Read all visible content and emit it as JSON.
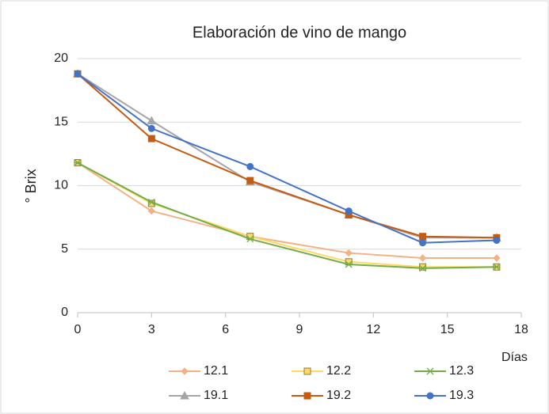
{
  "chart_data": {
    "type": "line",
    "title": "Elaboración de vino de mango",
    "x_label": "Días",
    "y_label": "° Brix",
    "x": [
      0,
      3,
      7,
      11,
      14,
      17
    ],
    "series": [
      {
        "name": "12.1",
        "color": "#f4b183",
        "marker": "diamond",
        "values": [
          11.8,
          8.0,
          6.0,
          4.7,
          4.3,
          4.3
        ]
      },
      {
        "name": "12.2",
        "color": "#ffd966",
        "marker": "square-open",
        "values": [
          11.8,
          8.6,
          6.0,
          4.0,
          3.6,
          3.6
        ]
      },
      {
        "name": "12.3",
        "color": "#70ad47",
        "marker": "star",
        "values": [
          11.8,
          8.7,
          5.8,
          3.8,
          3.5,
          3.6
        ]
      },
      {
        "name": "19.1",
        "color": "#a5a5a5",
        "marker": "triangle",
        "values": [
          18.8,
          15.1,
          10.3,
          7.7,
          5.9,
          5.9
        ]
      },
      {
        "name": "19.2",
        "color": "#c55a11",
        "marker": "square",
        "values": [
          18.8,
          13.7,
          10.4,
          7.7,
          6.0,
          5.9
        ]
      },
      {
        "name": "19.3",
        "color": "#4472c4",
        "marker": "circle",
        "values": [
          18.8,
          14.5,
          11.5,
          8.0,
          5.5,
          5.7
        ]
      }
    ],
    "xlim": [
      0,
      18
    ],
    "xticks": [
      0,
      3,
      6,
      9,
      12,
      15,
      18
    ],
    "ylim": [
      0,
      20
    ],
    "yticks": [
      0,
      5,
      10,
      15,
      20
    ],
    "grid": true,
    "legend": "bottom"
  }
}
